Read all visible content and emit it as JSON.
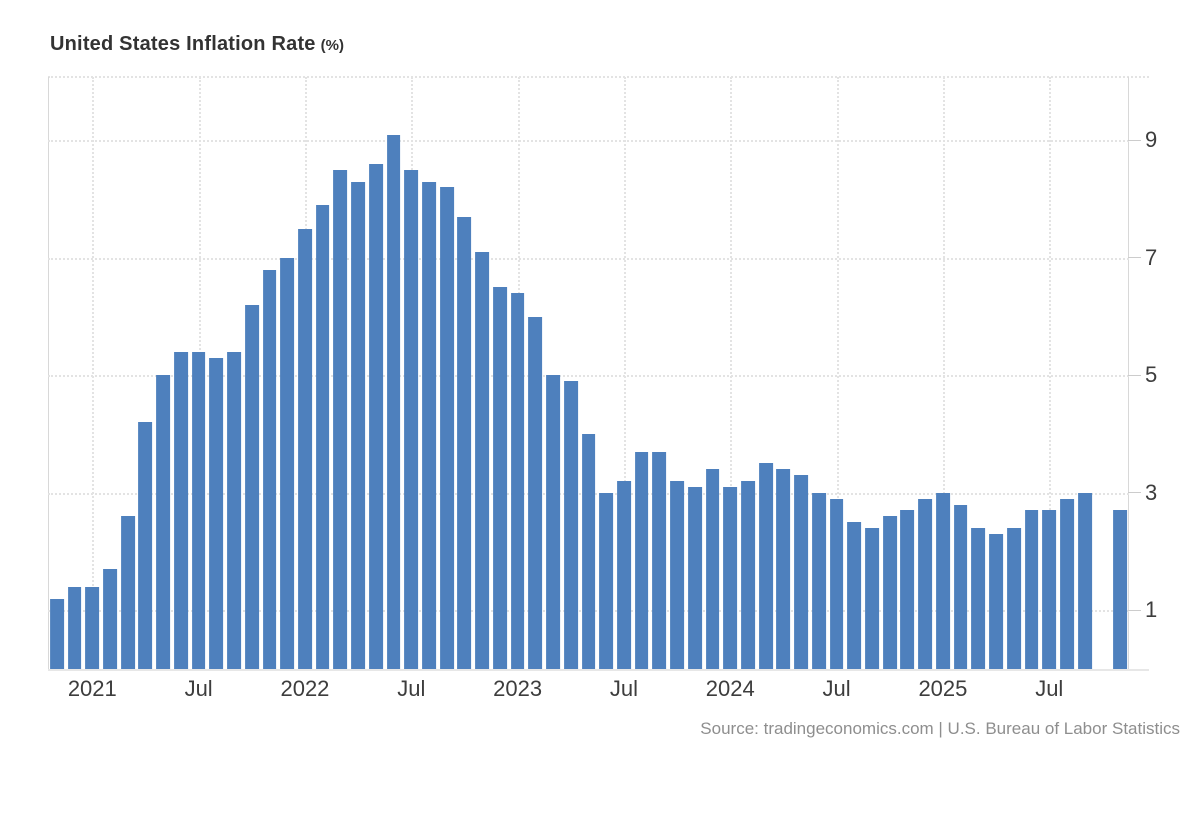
{
  "chart_data": {
    "type": "bar",
    "title": "United States Inflation Rate",
    "title_unit": "(%)",
    "source": "Source: tradingeconomics.com | U.S. Bureau of Labor Statistics",
    "bar_color": "#4e80bd",
    "grid": "dotted",
    "legend": "none",
    "xlabel": "",
    "ylabel": "",
    "ylim": [
      0,
      10.08
    ],
    "y_ticks": [
      9,
      7,
      5,
      3,
      1
    ],
    "x": [
      "Nov 2020",
      "Dec 2020",
      "Jan 2021",
      "Feb 2021",
      "Mar 2021",
      "Apr 2021",
      "May 2021",
      "Jun 2021",
      "Jul 2021",
      "Aug 2021",
      "Sep 2021",
      "Oct 2021",
      "Nov 2021",
      "Dec 2021",
      "Jan 2022",
      "Feb 2022",
      "Mar 2022",
      "Apr 2022",
      "May 2022",
      "Jun 2022",
      "Jul 2022",
      "Aug 2022",
      "Sep 2022",
      "Oct 2022",
      "Nov 2022",
      "Dec 2022",
      "Jan 2023",
      "Feb 2023",
      "Mar 2023",
      "Apr 2023",
      "May 2023",
      "Jun 2023",
      "Jul 2023",
      "Aug 2023",
      "Sep 2023",
      "Oct 2023",
      "Nov 2023",
      "Dec 2023",
      "Jan 2024",
      "Feb 2024",
      "Mar 2024",
      "Apr 2024",
      "May 2024",
      "Jun 2024",
      "Jul 2024",
      "Aug 2024",
      "Sep 2024",
      "Oct 2024",
      "Nov 2024",
      "Dec 2024",
      "Jan 2025",
      "Feb 2025",
      "Mar 2025",
      "Apr 2025",
      "May 2025",
      "Jun 2025",
      "Jul 2025",
      "Aug 2025",
      "Sep 2025",
      "Oct 2025",
      "Nov 2025"
    ],
    "values": [
      1.2,
      1.4,
      1.4,
      1.7,
      2.6,
      4.2,
      5.0,
      5.4,
      5.4,
      5.3,
      5.4,
      6.2,
      6.8,
      7.0,
      7.5,
      7.9,
      8.5,
      8.3,
      8.6,
      9.1,
      8.5,
      8.3,
      8.2,
      7.7,
      7.1,
      6.5,
      6.4,
      6.0,
      5.0,
      4.9,
      4.0,
      3.0,
      3.2,
      3.7,
      3.7,
      3.2,
      3.1,
      3.4,
      3.1,
      3.2,
      3.5,
      3.4,
      3.3,
      3.0,
      2.9,
      2.5,
      2.4,
      2.6,
      2.7,
      2.9,
      3.0,
      2.8,
      2.4,
      2.3,
      2.4,
      2.7,
      2.7,
      2.9,
      3.0,
      null,
      2.7
    ],
    "x_ticks": [
      {
        "index": 2,
        "label": "2021"
      },
      {
        "index": 8,
        "label": "Jul"
      },
      {
        "index": 14,
        "label": "2022"
      },
      {
        "index": 20,
        "label": "Jul"
      },
      {
        "index": 26,
        "label": "2023"
      },
      {
        "index": 32,
        "label": "Jul"
      },
      {
        "index": 38,
        "label": "2024"
      },
      {
        "index": 44,
        "label": "Jul"
      },
      {
        "index": 50,
        "label": "2025"
      },
      {
        "index": 56,
        "label": "Jul"
      }
    ]
  }
}
